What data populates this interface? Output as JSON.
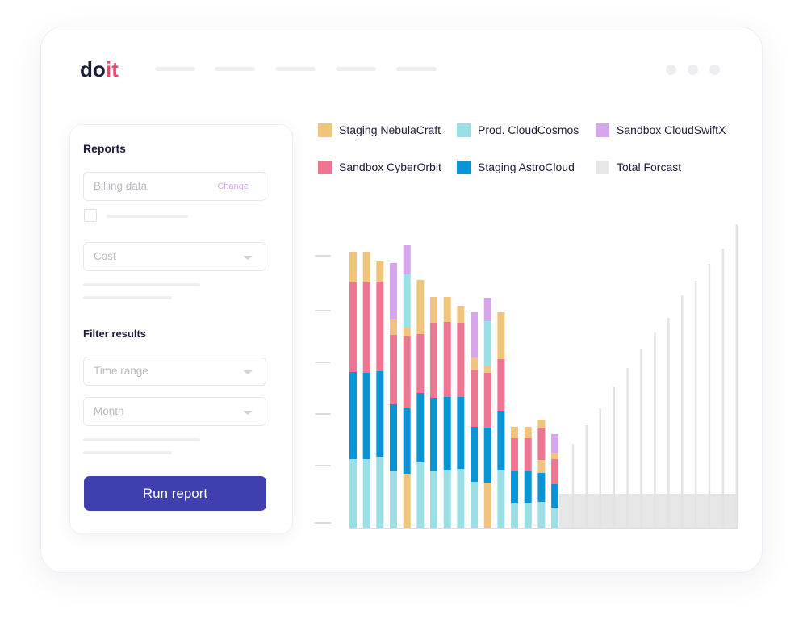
{
  "brand": {
    "logo_text": "doit"
  },
  "window_controls": [
    "dot",
    "dot",
    "dot"
  ],
  "panel": {
    "reports_heading": "Reports",
    "billing_placeholder": "Billing data",
    "change_link": "Change",
    "cost_placeholder": "Cost",
    "filter_heading": "Filter results",
    "time_range_placeholder": "Time range",
    "month_placeholder": "Month",
    "run_button": "Run report"
  },
  "legend": [
    {
      "label": "Staging NebulaCraft",
      "color": "#EFC57E"
    },
    {
      "label": "Prod. CloudCosmos",
      "color": "#9ADFE6"
    },
    {
      "label": "Sandbox CloudSwiftX",
      "color": "#D6A6EC"
    },
    {
      "label": "Sandbox CyberOrbit",
      "color": "#EE7693"
    },
    {
      "label": "Staging AstroCloud",
      "color": "#0994D6"
    },
    {
      "label": "Total Forcast",
      "color": "#E6E6E6"
    }
  ],
  "chart_data": {
    "type": "bar",
    "stacked": true,
    "y_ticks_labeled": false,
    "bars": [
      [
        {
          "s": "Prod. CloudCosmos",
          "v": 85
        },
        {
          "s": "Staging AstroCloud",
          "v": 108
        },
        {
          "s": "Sandbox CyberOrbit",
          "v": 111
        },
        {
          "s": "Staging NebulaCraft",
          "v": 38
        }
      ],
      [
        {
          "s": "Prod. CloudCosmos",
          "v": 85
        },
        {
          "s": "Staging AstroCloud",
          "v": 107
        },
        {
          "s": "Sandbox CyberOrbit",
          "v": 112
        },
        {
          "s": "Staging NebulaCraft",
          "v": 38
        }
      ],
      [
        {
          "s": "Prod. CloudCosmos",
          "v": 88
        },
        {
          "s": "Staging AstroCloud",
          "v": 106
        },
        {
          "s": "Sandbox CyberOrbit",
          "v": 111
        },
        {
          "s": "Staging NebulaCraft",
          "v": 25
        }
      ],
      [
        {
          "s": "Prod. CloudCosmos",
          "v": 70
        },
        {
          "s": "Staging AstroCloud",
          "v": 83
        },
        {
          "s": "Sandbox CyberOrbit",
          "v": 86
        },
        {
          "s": "Staging NebulaCraft",
          "v": 20
        },
        {
          "s": "Sandbox CloudSwiftX",
          "v": 69
        }
      ],
      [
        {
          "s": "Staging NebulaCraft",
          "v": 66
        },
        {
          "s": "Staging AstroCloud",
          "v": 82
        },
        {
          "s": "Sandbox CyberOrbit",
          "v": 89
        },
        {
          "s": "Staging NebulaCraft",
          "v": 11
        },
        {
          "s": "Prod. CloudCosmos",
          "v": 66
        },
        {
          "s": "Sandbox CloudSwiftX",
          "v": 36
        }
      ],
      [
        {
          "s": "Prod. CloudCosmos",
          "v": 81
        },
        {
          "s": "Staging AstroCloud",
          "v": 86
        },
        {
          "s": "Sandbox CyberOrbit",
          "v": 73
        },
        {
          "s": "Staging NebulaCraft",
          "v": 67
        }
      ],
      [
        {
          "s": "Prod. CloudCosmos",
          "v": 70
        },
        {
          "s": "Staging AstroCloud",
          "v": 91
        },
        {
          "s": "Sandbox CyberOrbit",
          "v": 93
        },
        {
          "s": "Staging NebulaCraft",
          "v": 32
        }
      ],
      [
        {
          "s": "Prod. CloudCosmos",
          "v": 71
        },
        {
          "s": "Staging AstroCloud",
          "v": 91
        },
        {
          "s": "Sandbox CyberOrbit",
          "v": 93
        },
        {
          "s": "Staging NebulaCraft",
          "v": 31
        }
      ],
      [
        {
          "s": "Prod. CloudCosmos",
          "v": 73
        },
        {
          "s": "Staging AstroCloud",
          "v": 89
        },
        {
          "s": "Sandbox CyberOrbit",
          "v": 92
        },
        {
          "s": "Staging NebulaCraft",
          "v": 21
        }
      ],
      [
        {
          "s": "Prod. CloudCosmos",
          "v": 57
        },
        {
          "s": "Staging AstroCloud",
          "v": 68
        },
        {
          "s": "Sandbox CyberOrbit",
          "v": 71
        },
        {
          "s": "Staging NebulaCraft",
          "v": 15
        },
        {
          "s": "Sandbox CloudSwiftX",
          "v": 56
        }
      ],
      [
        {
          "s": "Staging NebulaCraft",
          "v": 56
        },
        {
          "s": "Staging AstroCloud",
          "v": 68
        },
        {
          "s": "Sandbox CyberOrbit",
          "v": 68
        },
        {
          "s": "Staging NebulaCraft",
          "v": 8
        },
        {
          "s": "Prod. CloudCosmos",
          "v": 56
        },
        {
          "s": "Sandbox CloudSwiftX",
          "v": 29
        }
      ],
      [
        {
          "s": "Prod. CloudCosmos",
          "v": 71
        },
        {
          "s": "Staging AstroCloud",
          "v": 74
        },
        {
          "s": "Sandbox CyberOrbit",
          "v": 64
        },
        {
          "s": "Staging NebulaCraft",
          "v": 58
        }
      ],
      [
        {
          "s": "Prod. CloudCosmos",
          "v": 31
        },
        {
          "s": "Staging AstroCloud",
          "v": 39
        },
        {
          "s": "Sandbox CyberOrbit",
          "v": 41
        },
        {
          "s": "Staging NebulaCraft",
          "v": 14
        }
      ],
      [
        {
          "s": "Prod. CloudCosmos",
          "v": 31
        },
        {
          "s": "Staging AstroCloud",
          "v": 39
        },
        {
          "s": "Sandbox CyberOrbit",
          "v": 41
        },
        {
          "s": "Staging NebulaCraft",
          "v": 14
        }
      ],
      [
        {
          "s": "Prod. CloudCosmos",
          "v": 32
        },
        {
          "s": "Staging AstroCloud",
          "v": 36
        },
        {
          "s": "Staging NebulaCraft",
          "v": 16
        },
        {
          "s": "Sandbox CyberOrbit",
          "v": 40
        },
        {
          "s": "Staging NebulaCraft",
          "v": 10
        }
      ],
      [
        {
          "s": "Prod. CloudCosmos",
          "v": 25
        },
        {
          "s": "Staging AstroCloud",
          "v": 29
        },
        {
          "s": "Sandbox CyberOrbit",
          "v": 31
        },
        {
          "s": "Staging NebulaCraft",
          "v": 8
        },
        {
          "s": "Sandbox CloudSwiftX",
          "v": 23
        }
      ]
    ],
    "forecast_baseline": 42,
    "forecast_values": [
      104,
      127,
      148,
      175,
      198,
      222,
      242,
      260,
      288,
      306,
      327,
      346,
      376
    ]
  }
}
